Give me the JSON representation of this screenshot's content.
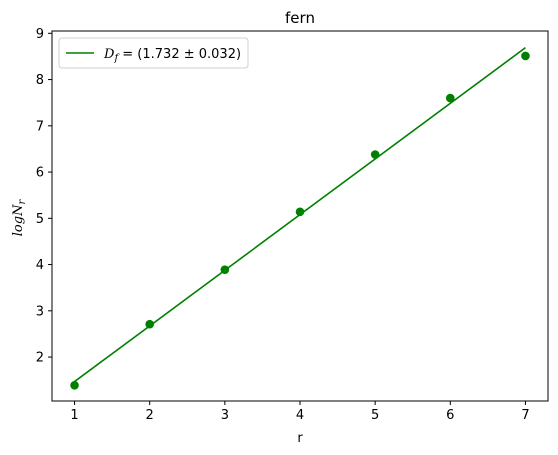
{
  "chart_data": {
    "type": "scatter",
    "title": "fern",
    "xlabel": "r",
    "ylabel": {
      "base": "logN",
      "sub": "r"
    },
    "xlim": [
      0.7,
      7.3
    ],
    "ylim": [
      1.05,
      9.05
    ],
    "xticks": [
      1,
      2,
      3,
      4,
      5,
      6,
      7
    ],
    "yticks": [
      2,
      3,
      4,
      5,
      6,
      7,
      8,
      9
    ],
    "grid": false,
    "legend_position": "top-left",
    "series": [
      {
        "kind": "points",
        "color": "#008000",
        "x": [
          1,
          2,
          3,
          4,
          5,
          6,
          7
        ],
        "y": [
          1.39,
          2.71,
          3.89,
          5.14,
          6.38,
          7.6,
          8.51
        ]
      },
      {
        "kind": "fit-line",
        "color": "#008000",
        "x": [
          1,
          7
        ],
        "y": [
          1.47,
          8.69
        ],
        "legend": {
          "symbol": "D",
          "subscript": "f",
          "text": " = (1.732 ± 0.032)"
        }
      }
    ]
  }
}
